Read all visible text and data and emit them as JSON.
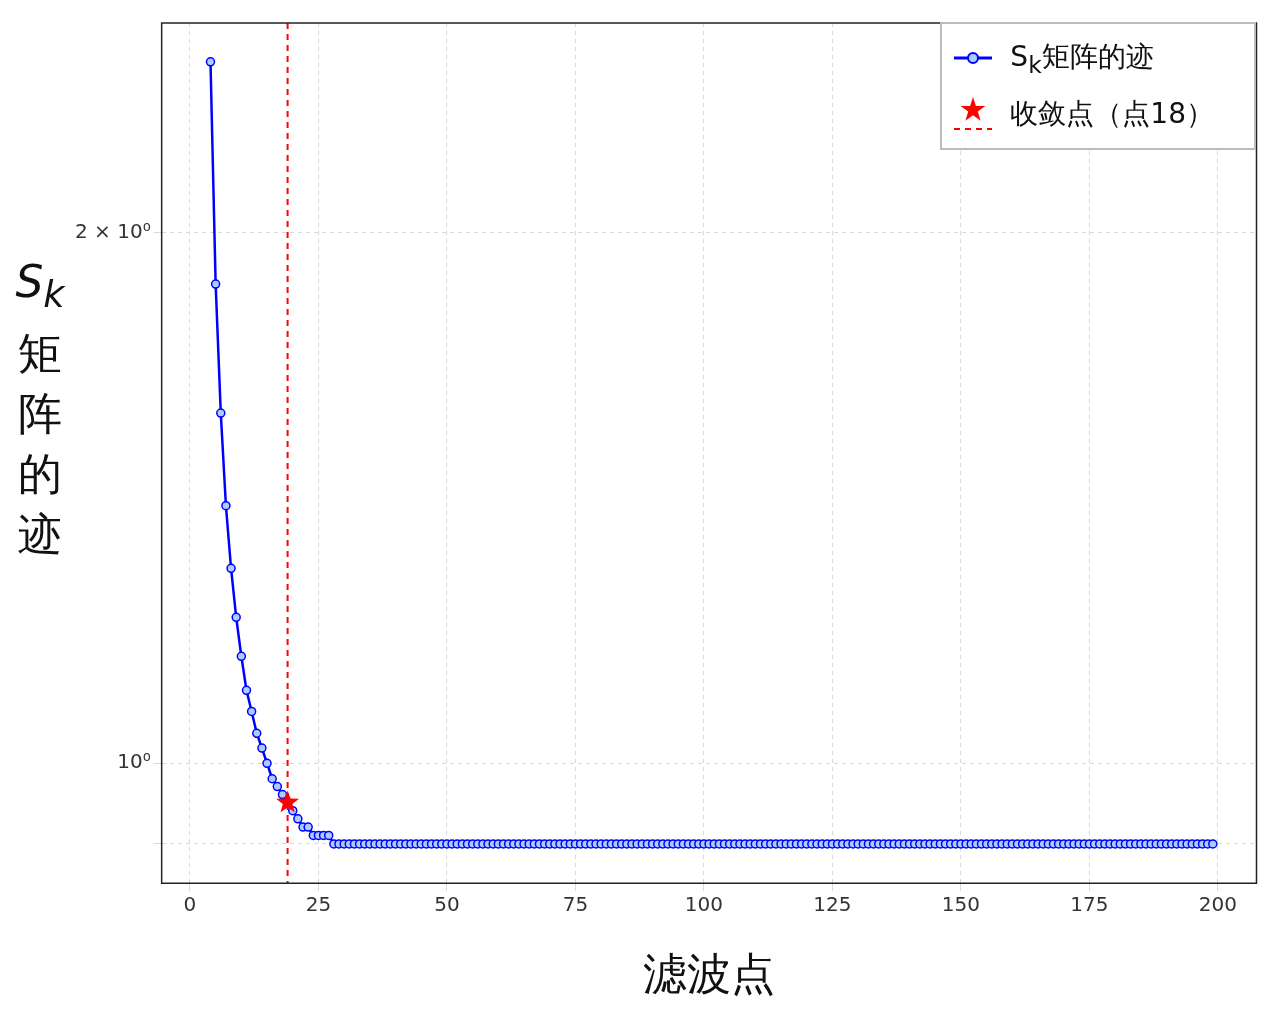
{
  "chart_data": {
    "type": "line",
    "xlabel": "滤波点",
    "ylabel": "S$_{k}$矩阵的迹",
    "log": "y",
    "grid": true,
    "legend": "top right",
    "marker": "circle",
    "xlim": [
      -5.5,
      207.5
    ],
    "xticks": [
      0,
      25,
      50,
      75,
      100,
      125,
      150,
      175,
      200
    ],
    "ylim": [
      0.855,
      2.63
    ],
    "yticks": [
      {
        "value": 0.9,
        "label": null
      },
      {
        "value": 1,
        "label": "10⁰"
      },
      {
        "value": 2,
        "label": "2 × 10⁰"
      }
    ],
    "ref_lines": [
      {
        "axis": "x",
        "value": 19,
        "color": "#ff0000",
        "line_style": "dashed"
      }
    ],
    "series": [
      {
        "name": "S$_{k}$矩阵的迹",
        "color": "#0000ff",
        "x": [
          4,
          5,
          6,
          7,
          8,
          9,
          10,
          11,
          12,
          13,
          14,
          15,
          16,
          17,
          18,
          19,
          20,
          21,
          22,
          23,
          24,
          25,
          26,
          27,
          28,
          29,
          30,
          31,
          32,
          33,
          34,
          35,
          36,
          37,
          38,
          39,
          40,
          41,
          42,
          43,
          44,
          45,
          46,
          47,
          48,
          49,
          50,
          51,
          52,
          53,
          54,
          55,
          56,
          57,
          58,
          59,
          60,
          61,
          62,
          63,
          64,
          65,
          66,
          67,
          68,
          69,
          70,
          71,
          72,
          73,
          74,
          75,
          76,
          77,
          78,
          79,
          80,
          81,
          82,
          83,
          84,
          85,
          86,
          87,
          88,
          89,
          90,
          91,
          92,
          93,
          94,
          95,
          96,
          97,
          98,
          99,
          100,
          101,
          102,
          103,
          104,
          105,
          106,
          107,
          108,
          109,
          110,
          111,
          112,
          113,
          114,
          115,
          116,
          117,
          118,
          119,
          120,
          121,
          122,
          123,
          124,
          125,
          126,
          127,
          128,
          129,
          130,
          131,
          132,
          133,
          134,
          135,
          136,
          137,
          138,
          139,
          140,
          141,
          142,
          143,
          144,
          145,
          146,
          147,
          148,
          149,
          150,
          151,
          152,
          153,
          154,
          155,
          156,
          157,
          158,
          159,
          160,
          161,
          162,
          163,
          164,
          165,
          166,
          167,
          168,
          169,
          170,
          171,
          172,
          173,
          174,
          175,
          176,
          177,
          178,
          179,
          180,
          181,
          182,
          183,
          184,
          185,
          186,
          187,
          188,
          189,
          190,
          191,
          192,
          193,
          194,
          195,
          196,
          197,
          198,
          199
        ],
        "values": [
          2.5,
          1.87,
          1.58,
          1.4,
          1.29,
          1.21,
          1.15,
          1.1,
          1.07,
          1.04,
          1.02,
          1.0,
          0.98,
          0.97,
          0.96,
          0.95,
          0.94,
          0.93,
          0.92,
          0.92,
          0.91,
          0.91,
          0.91,
          0.91,
          0.9,
          0.9,
          0.9,
          0.9,
          0.9,
          0.9,
          0.9,
          0.9,
          0.9,
          0.9,
          0.9,
          0.9,
          0.9,
          0.9,
          0.9,
          0.9,
          0.9,
          0.9,
          0.9,
          0.9,
          0.9,
          0.9,
          0.9,
          0.9,
          0.9,
          0.9,
          0.9,
          0.9,
          0.9,
          0.9,
          0.9,
          0.9,
          0.9,
          0.9,
          0.9,
          0.9,
          0.9,
          0.9,
          0.9,
          0.9,
          0.9,
          0.9,
          0.9,
          0.9,
          0.9,
          0.9,
          0.9,
          0.9,
          0.9,
          0.9,
          0.9,
          0.9,
          0.9,
          0.9,
          0.9,
          0.9,
          0.9,
          0.9,
          0.9,
          0.9,
          0.9,
          0.9,
          0.9,
          0.9,
          0.9,
          0.9,
          0.9,
          0.9,
          0.9,
          0.9,
          0.9,
          0.9,
          0.9,
          0.9,
          0.9,
          0.9,
          0.9,
          0.9,
          0.9,
          0.9,
          0.9,
          0.9,
          0.9,
          0.9,
          0.9,
          0.9,
          0.9,
          0.9,
          0.9,
          0.9,
          0.9,
          0.9,
          0.9,
          0.9,
          0.9,
          0.9,
          0.9,
          0.9,
          0.9,
          0.9,
          0.9,
          0.9,
          0.9,
          0.9,
          0.9,
          0.9,
          0.9,
          0.9,
          0.9,
          0.9,
          0.9,
          0.9,
          0.9,
          0.9,
          0.9,
          0.9,
          0.9,
          0.9,
          0.9,
          0.9,
          0.9,
          0.9,
          0.9,
          0.9,
          0.9,
          0.9,
          0.9,
          0.9,
          0.9,
          0.9,
          0.9,
          0.9,
          0.9,
          0.9,
          0.9,
          0.9,
          0.9,
          0.9,
          0.9,
          0.9,
          0.9,
          0.9,
          0.9,
          0.9,
          0.9,
          0.9,
          0.9,
          0.9,
          0.9,
          0.9,
          0.9,
          0.9,
          0.9,
          0.9,
          0.9,
          0.9,
          0.9,
          0.9,
          0.9,
          0.9,
          0.9,
          0.9,
          0.9,
          0.9,
          0.9,
          0.9,
          0.9,
          0.9,
          0.9,
          0.9,
          0.9,
          0.9
        ]
      },
      {
        "type": "scatter",
        "name": "收敛点（点18）",
        "color": "#ff0000",
        "marker": "star",
        "x": [
          19
        ],
        "values": [
          0.95
        ]
      }
    ]
  }
}
